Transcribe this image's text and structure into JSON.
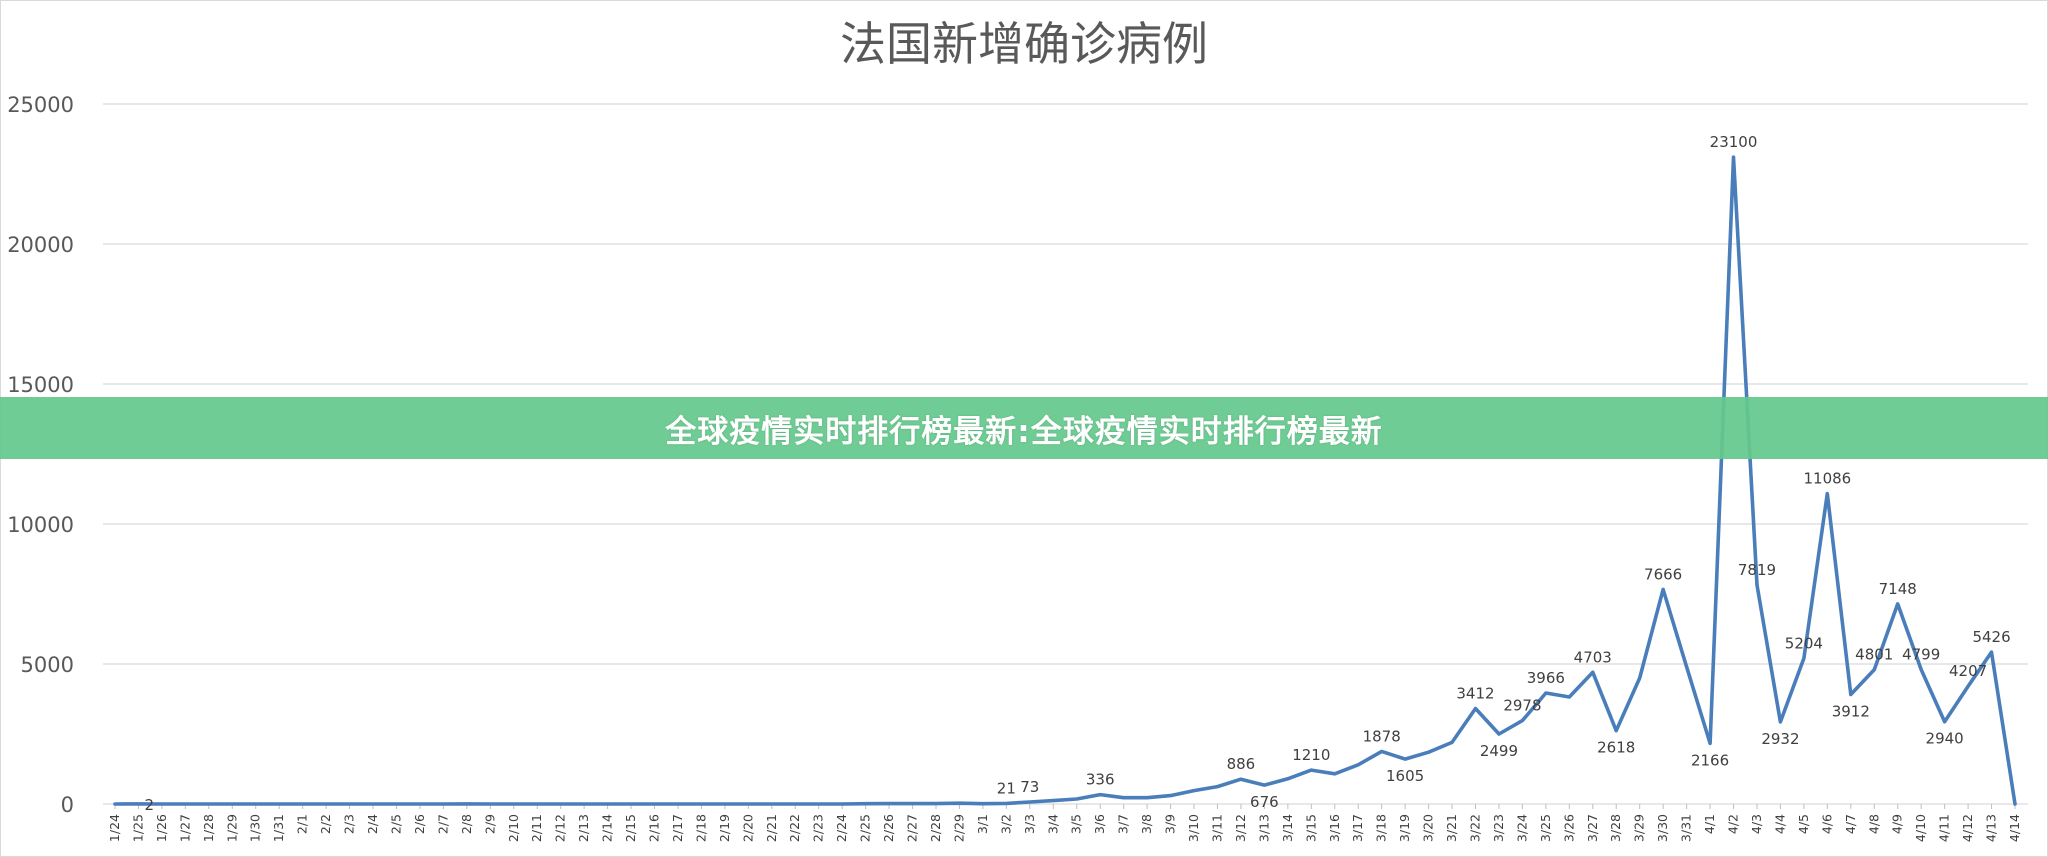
{
  "chart_data": {
    "type": "line",
    "title": "法国新增确诊病例",
    "xlabel": "",
    "ylabel": "",
    "ylim": [
      0,
      25000
    ],
    "yticks": [
      0,
      5000,
      10000,
      15000,
      20000,
      25000
    ],
    "grid": true,
    "categories": [
      "1/24",
      "1/25",
      "1/26",
      "1/27",
      "1/28",
      "1/29",
      "1/30",
      "1/31",
      "2/1",
      "2/2",
      "2/3",
      "2/4",
      "2/5",
      "2/6",
      "2/7",
      "2/8",
      "2/9",
      "2/10",
      "2/11",
      "2/12",
      "2/13",
      "2/14",
      "2/15",
      "2/16",
      "2/17",
      "2/18",
      "2/19",
      "2/20",
      "2/21",
      "2/22",
      "2/23",
      "2/24",
      "2/25",
      "2/26",
      "2/27",
      "2/28",
      "2/29",
      "3/1",
      "3/2",
      "3/3",
      "3/4",
      "3/5",
      "3/6",
      "3/7",
      "3/8",
      "3/9",
      "3/10",
      "3/11",
      "3/12",
      "3/13",
      "3/14",
      "3/15",
      "3/16",
      "3/17",
      "3/18",
      "3/19",
      "3/20",
      "3/21",
      "3/22",
      "3/23",
      "3/24",
      "3/25",
      "3/26",
      "3/27",
      "3/28",
      "3/29",
      "3/30",
      "3/31",
      "4/1",
      "4/2",
      "4/3",
      "4/4",
      "4/5",
      "4/6",
      "4/7",
      "4/8",
      "4/9",
      "4/10",
      "4/11",
      "4/12",
      "4/13",
      "4/14"
    ],
    "series": [
      {
        "color": "#4a7ebb",
        "values": [
          0,
          2,
          0,
          0,
          0,
          0,
          0,
          0,
          0,
          0,
          0,
          0,
          0,
          0,
          0,
          5,
          0,
          0,
          0,
          0,
          0,
          0,
          0,
          0,
          0,
          0,
          0,
          0,
          0,
          0,
          0,
          0,
          10,
          15,
          15,
          15,
          30,
          10,
          21,
          73,
          120,
          180,
          336,
          225,
          225,
          300,
          480,
          620,
          886,
          676,
          900,
          1210,
          1080,
          1400,
          1878,
          1605,
          1850,
          2200,
          3412,
          2499,
          2978,
          3966,
          3820,
          4703,
          2618,
          4500,
          7666,
          4900,
          2166,
          23100,
          7819,
          2932,
          5204,
          11086,
          3912,
          4801,
          7148,
          4799,
          2940,
          4207,
          5426,
          0
        ]
      }
    ],
    "data_labels": [
      {
        "index": 1,
        "text": "2"
      },
      {
        "index": 38,
        "text": "21"
      },
      {
        "index": 39,
        "text": "73"
      },
      {
        "index": 42,
        "text": "336"
      },
      {
        "index": 48,
        "text": "886"
      },
      {
        "index": 49,
        "text": "676"
      },
      {
        "index": 51,
        "text": "1210"
      },
      {
        "index": 54,
        "text": "1878"
      },
      {
        "index": 55,
        "text": "1605"
      },
      {
        "index": 58,
        "text": "3412"
      },
      {
        "index": 59,
        "text": "2499"
      },
      {
        "index": 60,
        "text": "2978"
      },
      {
        "index": 61,
        "text": "3966"
      },
      {
        "index": 63,
        "text": "4703"
      },
      {
        "index": 64,
        "text": "2618"
      },
      {
        "index": 66,
        "text": "7666"
      },
      {
        "index": 68,
        "text": "2166"
      },
      {
        "index": 69,
        "text": "23100"
      },
      {
        "index": 70,
        "text": "7819"
      },
      {
        "index": 71,
        "text": "2932"
      },
      {
        "index": 72,
        "text": "5204"
      },
      {
        "index": 73,
        "text": "11086"
      },
      {
        "index": 74,
        "text": "3912"
      },
      {
        "index": 75,
        "text": "4801"
      },
      {
        "index": 76,
        "text": "7148"
      },
      {
        "index": 77,
        "text": "4799"
      },
      {
        "index": 78,
        "text": "2940"
      },
      {
        "index": 79,
        "text": "4207"
      },
      {
        "index": 80,
        "text": "5426"
      }
    ]
  },
  "banner": {
    "text": "全球疫情实时排行榜最新:全球疫情实时排行榜最新",
    "color": "#64c88c"
  }
}
